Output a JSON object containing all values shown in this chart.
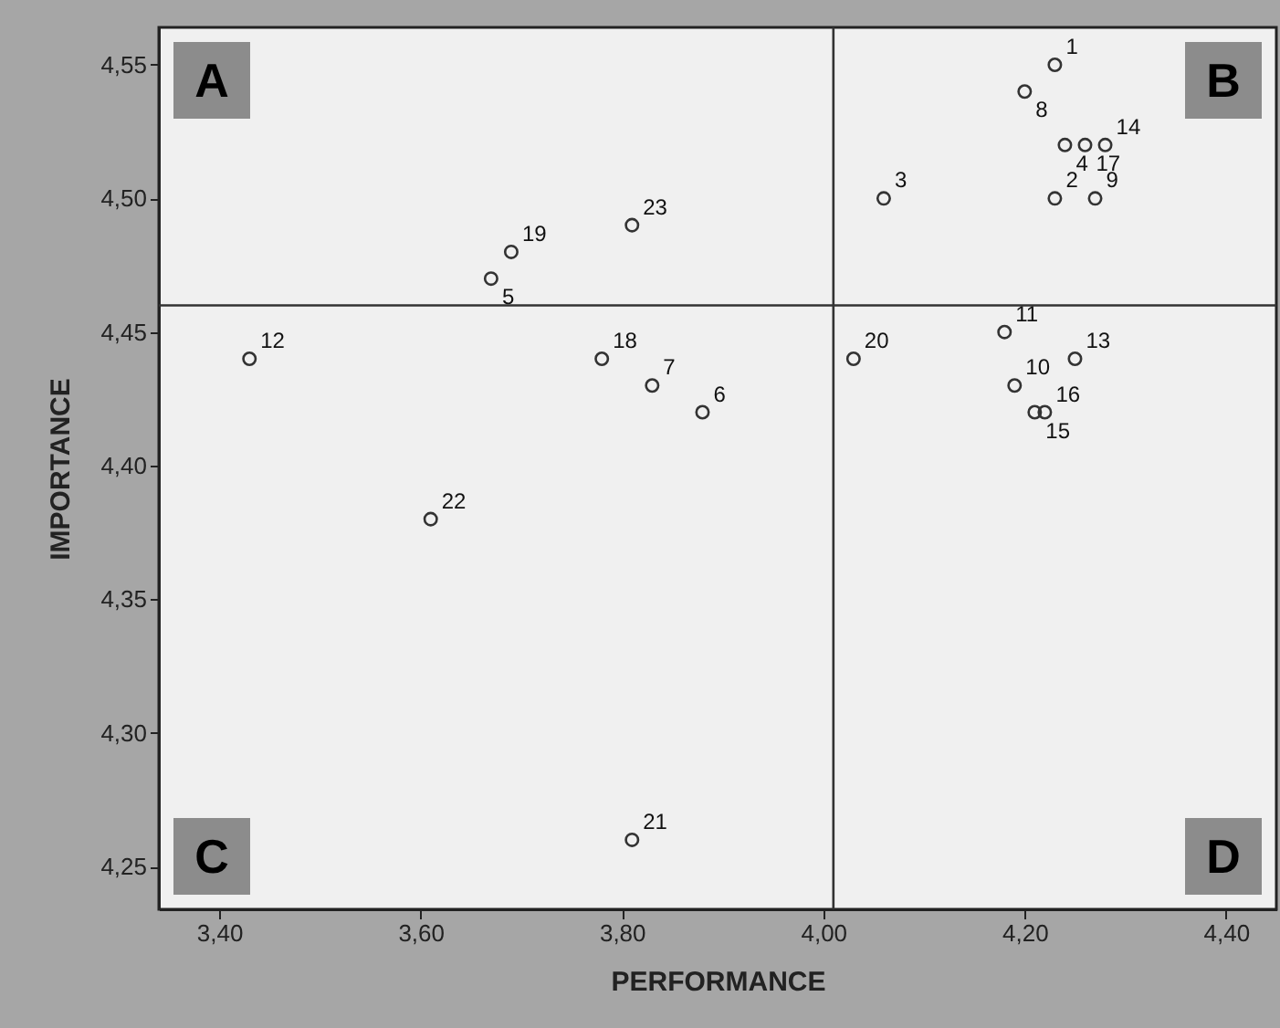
{
  "chart_data": {
    "type": "scatter",
    "xlabel": "PERFORMANCE",
    "ylabel": "IMPORTANCE",
    "x": [
      4.23,
      4.23,
      4.06,
      4.24,
      3.67,
      3.88,
      3.83,
      4.2,
      4.27,
      4.19,
      4.18,
      3.43,
      4.25,
      4.28,
      4.21,
      4.22,
      4.26,
      3.78,
      3.69,
      4.03,
      3.81,
      3.61,
      3.81
    ],
    "series": [
      {
        "color": "#333333",
        "values": [
          4.55,
          4.5,
          4.5,
          4.52,
          4.47,
          4.42,
          4.43,
          4.54,
          4.5,
          4.43,
          4.45,
          4.44,
          4.44,
          4.52,
          4.42,
          4.42,
          4.52,
          4.44,
          4.48,
          4.44,
          4.26,
          4.38,
          4.49
        ]
      }
    ],
    "marker": "circle",
    "xlim": [
      3.34,
      4.45
    ],
    "ylim": [
      4.234,
      4.564
    ],
    "xticks": [
      {
        "value": 3.4,
        "label": "3,40"
      },
      {
        "value": 3.6,
        "label": "3,60"
      },
      {
        "value": 3.8,
        "label": "3,80"
      },
      {
        "value": 4.0,
        "label": "4,00"
      },
      {
        "value": 4.2,
        "label": "4,20"
      },
      {
        "value": 4.4,
        "label": "4,40"
      }
    ],
    "yticks": [
      {
        "value": 4.25,
        "label": "4,25"
      },
      {
        "value": 4.3,
        "label": "4,30"
      },
      {
        "value": 4.35,
        "label": "4,35"
      },
      {
        "value": 4.4,
        "label": "4,40"
      },
      {
        "value": 4.45,
        "label": "4,45"
      },
      {
        "value": 4.5,
        "label": "4,50"
      },
      {
        "value": 4.55,
        "label": "4,55"
      }
    ],
    "grid": false,
    "ref_lines": [
      {
        "axis": "x",
        "value": 4.01,
        "color": "#333333"
      },
      {
        "axis": "y",
        "value": 4.46,
        "color": "#333333"
      }
    ],
    "annotations": [
      "A",
      "B",
      "C",
      "D",
      {
        "text": "1",
        "x": 4.23,
        "y": 4.55
      },
      {
        "text": "2",
        "x": 4.23,
        "y": 4.5
      },
      {
        "text": "3",
        "x": 4.06,
        "y": 4.5
      },
      {
        "text": "4",
        "x": 4.24,
        "y": 4.52
      },
      {
        "text": "5",
        "x": 3.67,
        "y": 4.47
      },
      {
        "text": "6",
        "x": 3.88,
        "y": 4.42
      },
      {
        "text": "7",
        "x": 3.83,
        "y": 4.43
      },
      {
        "text": "8",
        "x": 4.2,
        "y": 4.54
      },
      {
        "text": "9",
        "x": 4.27,
        "y": 4.5
      },
      {
        "text": "10",
        "x": 4.19,
        "y": 4.43
      },
      {
        "text": "11",
        "x": 4.18,
        "y": 4.45
      },
      {
        "text": "12",
        "x": 3.43,
        "y": 4.44
      },
      {
        "text": "13",
        "x": 4.25,
        "y": 4.44
      },
      {
        "text": "14",
        "x": 4.28,
        "y": 4.52
      },
      {
        "text": "15",
        "x": 4.21,
        "y": 4.42
      },
      {
        "text": "16",
        "x": 4.22,
        "y": 4.42
      },
      {
        "text": "17",
        "x": 4.26,
        "y": 4.52
      },
      {
        "text": "18",
        "x": 3.78,
        "y": 4.44
      },
      {
        "text": "19",
        "x": 3.69,
        "y": 4.48
      },
      {
        "text": "20",
        "x": 4.03,
        "y": 4.44
      },
      {
        "text": "21",
        "x": 3.81,
        "y": 4.26
      },
      {
        "text": "22",
        "x": 3.61,
        "y": 4.38
      },
      {
        "text": "23",
        "x": 3.81,
        "y": 4.49
      }
    ]
  }
}
